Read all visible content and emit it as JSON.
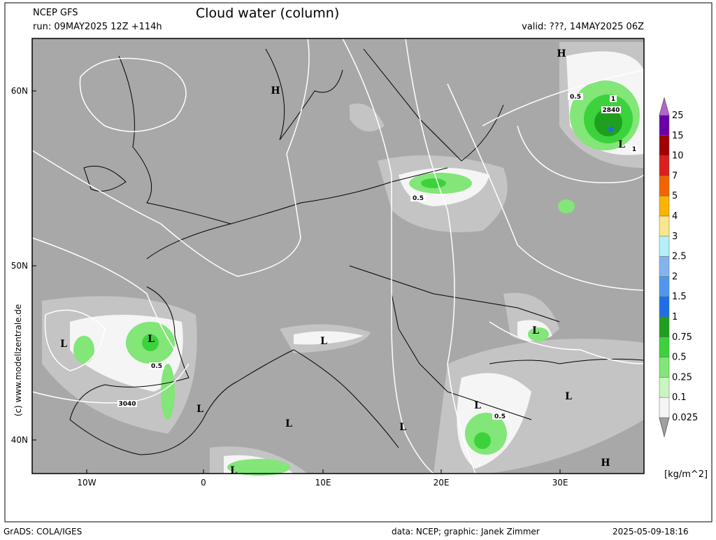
{
  "header": {
    "model": "NCEP GFS",
    "run": "run: 09MAY2025 12Z +114h",
    "title": "Cloud water (column)",
    "valid": "valid: ???, 14MAY2025 06Z"
  },
  "axes": {
    "lat": [
      "60N",
      "50N",
      "40N"
    ],
    "lon": [
      "10W",
      "0",
      "10E",
      "20E",
      "30E"
    ]
  },
  "credit": "(c) www.modellzentrale.de",
  "map_labels": [
    "H",
    "H",
    "H",
    "L",
    "L",
    "L",
    "L",
    "L",
    "L",
    "L",
    "L",
    "L",
    "L",
    "L",
    "2840",
    "3040",
    "0.5",
    "0.5",
    "0.5",
    "0.5",
    "1",
    "1"
  ],
  "colorbar": {
    "unit": "[kg/m^2]",
    "levels": [
      {
        "label": "25",
        "color": "#6a00a8"
      },
      {
        "label": "15",
        "color": "#a00000"
      },
      {
        "label": "10",
        "color": "#dc1e1e"
      },
      {
        "label": "7",
        "color": "#f26400"
      },
      {
        "label": "5",
        "color": "#fab400"
      },
      {
        "label": "4",
        "color": "#fae68c"
      },
      {
        "label": "3",
        "color": "#b4f0fa"
      },
      {
        "label": "2.5",
        "color": "#82b4f0"
      },
      {
        "label": "2",
        "color": "#5096f0"
      },
      {
        "label": "1.5",
        "color": "#1e6ee6"
      },
      {
        "label": "1",
        "color": "#1ea01e"
      },
      {
        "label": "0.75",
        "color": "#3cd23c"
      },
      {
        "label": "0.5",
        "color": "#82e678"
      },
      {
        "label": "0.25",
        "color": "#c8f5c0"
      },
      {
        "label": "0.1",
        "color": "#f5f5f5"
      },
      {
        "label": "0.025",
        "color": "#c8c8c8"
      }
    ]
  },
  "footer": {
    "left": "GrADS: COLA/IGES",
    "center": "data: NCEP; graphic: Janek Zimmer",
    "right": "2025-05-09-18:16"
  }
}
